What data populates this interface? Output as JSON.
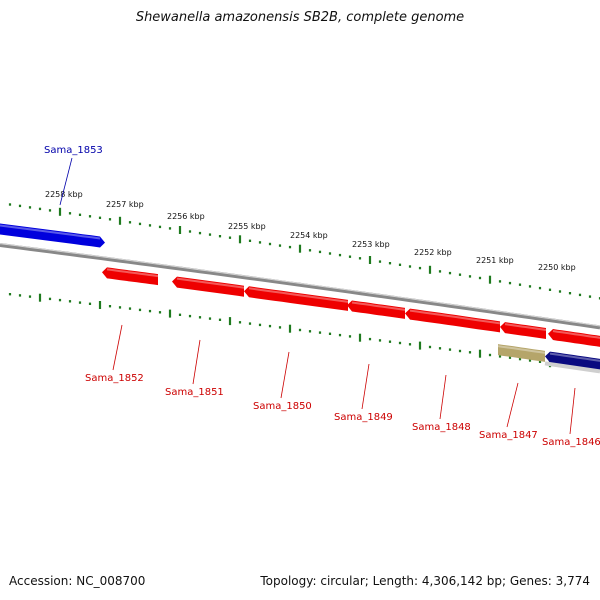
{
  "title": "Shewanella amazonensis SB2B, complete genome",
  "footer": {
    "accession": "Accession: NC_008700",
    "summary": "Topology: circular; Length: 4,306,142 bp; Genes: 3,774"
  },
  "colors": {
    "backbone": "#888888",
    "ticks": "#1f7a1f",
    "forward_gene": "#0000dd",
    "reverse_gene": "#ee0000",
    "rna_gene": "#b5a56a",
    "navy_gene": "#0a0a80",
    "forward_label": "#0000aa",
    "reverse_label": "#cc0000"
  },
  "scale_labels": [
    "2258 kbp",
    "2257 kbp",
    "2256 kbp",
    "2255 kbp",
    "2254 kbp",
    "2253 kbp",
    "2252 kbp",
    "2251 kbp",
    "2250 kbp"
  ],
  "genes": [
    {
      "id": "Sama_1853",
      "strand": "+",
      "kind": "forward"
    },
    {
      "id": "Sama_1852",
      "strand": "-",
      "kind": "reverse"
    },
    {
      "id": "Sama_1851",
      "strand": "-",
      "kind": "reverse"
    },
    {
      "id": "Sama_1850",
      "strand": "-",
      "kind": "reverse"
    },
    {
      "id": "Sama_1849",
      "strand": "-",
      "kind": "reverse"
    },
    {
      "id": "Sama_1848",
      "strand": "-",
      "kind": "reverse"
    },
    {
      "id": "Sama_1847",
      "strand": "-",
      "kind": "rna"
    },
    {
      "id": "Sama_1846",
      "strand": "-",
      "kind": "navy"
    }
  ]
}
